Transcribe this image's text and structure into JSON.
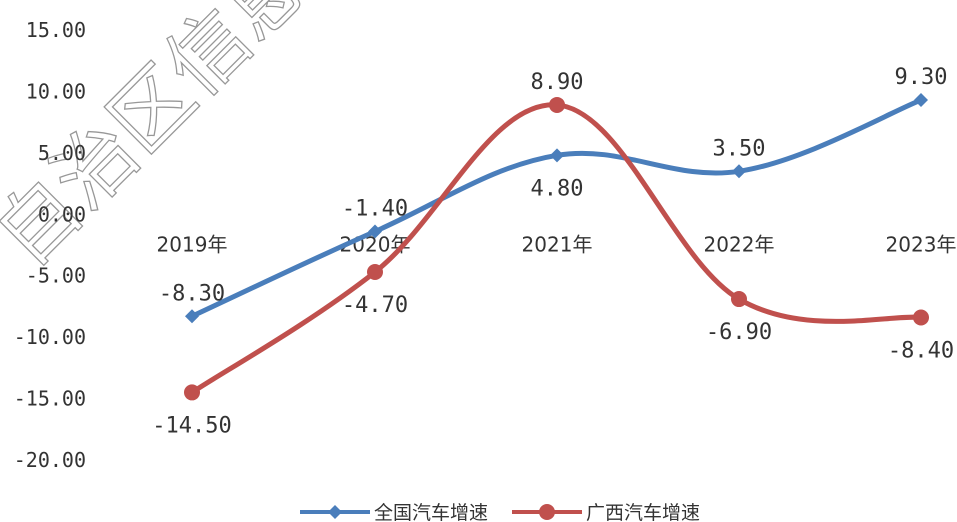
{
  "chart_data": {
    "type": "line",
    "categories": [
      "2019年",
      "2020年",
      "2021年",
      "2022年",
      "2023年"
    ],
    "y_ticks": [
      "15.00",
      "10.00",
      "5.00",
      "0.00",
      "-5.00",
      "-10.00",
      "-15.00",
      "-20.00"
    ],
    "ylim": [
      -20,
      15
    ],
    "smooth": true,
    "grid": false,
    "legend_position": "bottom",
    "series": [
      {
        "name": "全国汽车增速",
        "values": [
          -8.3,
          -1.4,
          4.8,
          3.5,
          9.3
        ],
        "labels": [
          "-8.30",
          "-1.40",
          "4.80",
          "3.50",
          "9.30"
        ],
        "marker": "diamond",
        "color": "#4a7ebb"
      },
      {
        "name": "广西汽车增速",
        "values": [
          -14.5,
          -4.7,
          8.9,
          -6.9,
          -8.4
        ],
        "labels": [
          "-14.50",
          "-4.70",
          "8.90",
          "-6.90",
          "-8.40"
        ],
        "marker": "circle",
        "color": "#c0504d"
      }
    ]
  },
  "watermark": {
    "text": "自治区信息"
  }
}
